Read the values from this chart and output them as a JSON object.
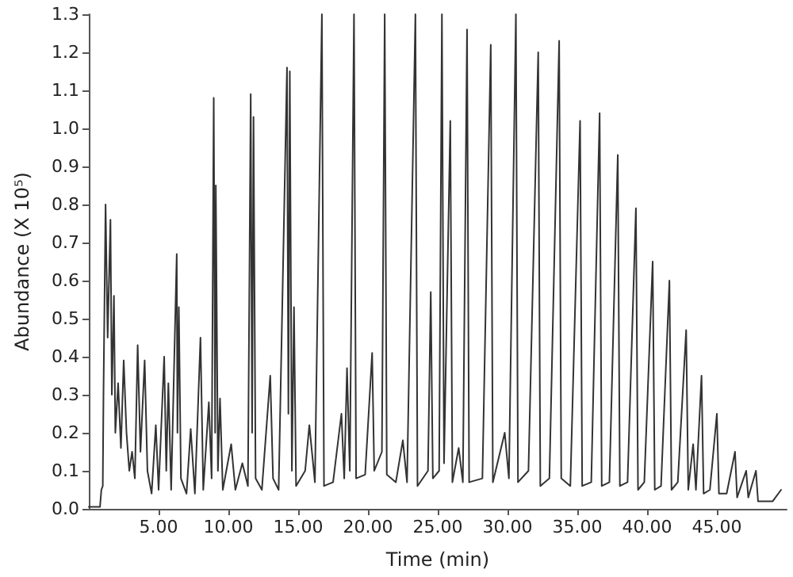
{
  "chart_data": {
    "type": "line",
    "xlabel": "Time (min)",
    "ylabel": "Abundance (X 10⁵)",
    "xlim": [
      0,
      50
    ],
    "ylim": [
      0,
      1.3
    ],
    "xticks": [
      {
        "value": 5,
        "label": "5.00"
      },
      {
        "value": 10,
        "label": "10.00"
      },
      {
        "value": 15,
        "label": "15.00"
      },
      {
        "value": 20,
        "label": "20.00"
      },
      {
        "value": 25,
        "label": "25.00"
      },
      {
        "value": 30,
        "label": "30.00"
      },
      {
        "value": 35,
        "label": "35.00"
      },
      {
        "value": 40,
        "label": "40.00"
      },
      {
        "value": 45,
        "label": "45.00"
      }
    ],
    "yticks": [
      {
        "value": 0,
        "label": "0.0"
      },
      0.1,
      0.2,
      0.3,
      0.4,
      0.5,
      0.6,
      0.7,
      0.8,
      0.9,
      {
        "value": 1,
        "label": "1.0"
      },
      1.1,
      1.2,
      1.3
    ],
    "marker": "none",
    "line_style": "solid",
    "x": [
      0.0,
      0.8,
      0.9,
      1.0,
      1.05,
      1.2,
      1.35,
      1.55,
      1.65,
      1.8,
      1.9,
      2.1,
      2.3,
      2.5,
      2.7,
      2.9,
      3.1,
      3.3,
      3.5,
      3.7,
      4.0,
      4.2,
      4.5,
      4.8,
      5.0,
      5.4,
      5.55,
      5.7,
      5.9,
      6.3,
      6.35,
      6.45,
      6.6,
      7.0,
      7.3,
      7.6,
      8.0,
      8.2,
      8.6,
      8.8,
      8.95,
      9.05,
      9.1,
      9.25,
      9.4,
      9.6,
      10.2,
      10.5,
      11.0,
      11.4,
      11.6,
      11.7,
      11.8,
      11.95,
      12.4,
      13.0,
      13.2,
      13.6,
      14.2,
      14.3,
      14.4,
      14.55,
      14.7,
      14.85,
      15.5,
      15.8,
      16.2,
      16.7,
      16.85,
      17.5,
      18.1,
      18.3,
      18.5,
      18.7,
      19.0,
      19.15,
      19.8,
      20.3,
      20.45,
      21.0,
      21.2,
      21.35,
      22.0,
      22.5,
      22.8,
      23.4,
      23.55,
      24.3,
      24.5,
      24.65,
      25.1,
      25.3,
      25.45,
      25.9,
      26.05,
      26.5,
      26.8,
      27.1,
      27.25,
      28.2,
      28.8,
      28.95,
      29.8,
      30.1,
      30.6,
      30.75,
      31.5,
      32.2,
      32.35,
      33.0,
      33.7,
      33.85,
      34.5,
      35.2,
      35.35,
      36.0,
      36.6,
      36.75,
      37.3,
      37.9,
      38.05,
      38.6,
      39.2,
      39.35,
      39.8,
      40.4,
      40.55,
      41.0,
      41.6,
      41.75,
      42.2,
      42.8,
      42.95,
      43.3,
      43.5,
      43.9,
      44.05,
      44.5,
      45.0,
      45.15,
      45.7,
      46.3,
      46.45,
      47.1,
      47.25,
      47.8,
      47.95,
      49.0,
      49.6
    ],
    "series": [
      {
        "color": "#333333",
        "values": [
          0.005,
          0.005,
          0.05,
          0.06,
          0.3,
          0.8,
          0.45,
          0.76,
          0.3,
          0.56,
          0.2,
          0.33,
          0.16,
          0.39,
          0.2,
          0.1,
          0.15,
          0.08,
          0.43,
          0.15,
          0.39,
          0.1,
          0.04,
          0.22,
          0.05,
          0.4,
          0.1,
          0.33,
          0.05,
          0.67,
          0.2,
          0.53,
          0.08,
          0.04,
          0.21,
          0.04,
          0.45,
          0.05,
          0.28,
          0.08,
          1.08,
          0.2,
          0.85,
          0.1,
          0.29,
          0.05,
          0.17,
          0.05,
          0.12,
          0.06,
          1.09,
          0.2,
          1.03,
          0.08,
          0.05,
          0.35,
          0.08,
          0.05,
          1.16,
          0.25,
          1.15,
          0.1,
          0.53,
          0.06,
          0.1,
          0.22,
          0.07,
          1.3,
          0.06,
          0.07,
          0.25,
          0.08,
          0.37,
          0.1,
          1.3,
          0.08,
          0.09,
          0.41,
          0.1,
          0.15,
          1.3,
          0.09,
          0.07,
          0.18,
          0.07,
          1.3,
          0.06,
          0.1,
          0.57,
          0.08,
          0.1,
          1.3,
          0.12,
          1.02,
          0.07,
          0.16,
          0.07,
          1.26,
          0.07,
          0.08,
          1.22,
          0.07,
          0.2,
          0.08,
          1.3,
          0.07,
          0.1,
          1.2,
          0.06,
          0.08,
          1.23,
          0.08,
          0.06,
          1.02,
          0.06,
          0.07,
          1.04,
          0.06,
          0.07,
          0.93,
          0.06,
          0.07,
          0.79,
          0.05,
          0.07,
          0.65,
          0.05,
          0.06,
          0.6,
          0.05,
          0.07,
          0.47,
          0.05,
          0.17,
          0.05,
          0.35,
          0.04,
          0.05,
          0.25,
          0.04,
          0.04,
          0.15,
          0.03,
          0.1,
          0.03,
          0.1,
          0.02,
          0.02,
          0.05
        ]
      }
    ]
  }
}
